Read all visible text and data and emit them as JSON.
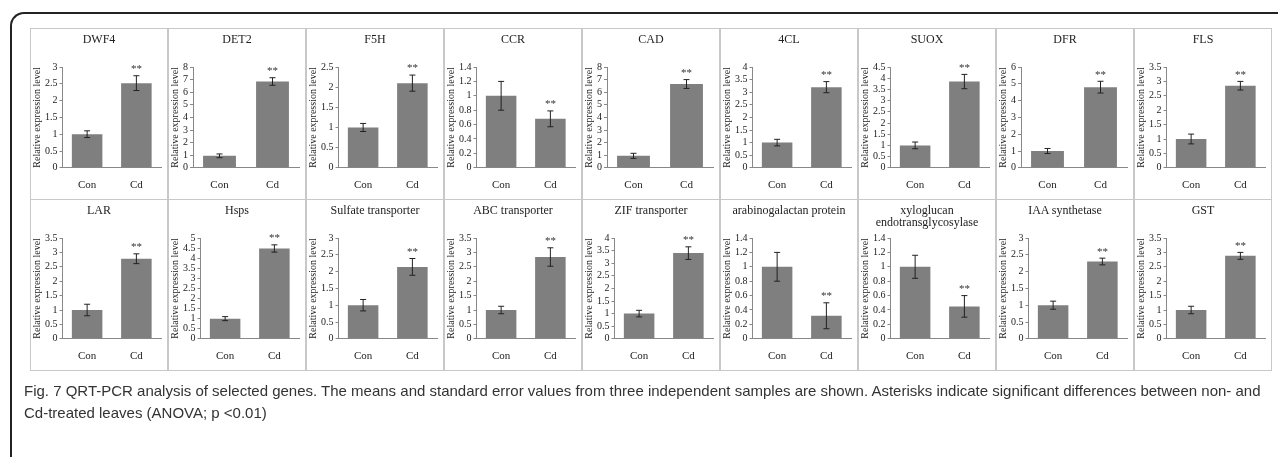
{
  "chart_data": [
    {
      "type": "bar",
      "title": "DWF4",
      "ylabel": "Relative expression level",
      "categories": [
        "Con",
        "Cd"
      ],
      "values": [
        1,
        2.52
      ],
      "errors": [
        0.1,
        0.22
      ],
      "color": "#7f7f7f",
      "ylim": [
        0,
        3
      ],
      "yticks": [
        0,
        0.5,
        1,
        1.5,
        2,
        2.5,
        3
      ],
      "annotations": [
        {
          "text": "**",
          "x": "Cd",
          "y": 2.74
        }
      ]
    },
    {
      "type": "bar",
      "title": "DET2",
      "ylabel": "Relative expression level",
      "categories": [
        "Con",
        "Cd"
      ],
      "values": [
        0.95,
        6.85
      ],
      "errors": [
        0.15,
        0.3
      ],
      "color": "#7f7f7f",
      "ylim": [
        0,
        8
      ],
      "yticks": [
        0,
        1,
        2,
        3,
        4,
        5,
        6,
        7,
        8
      ],
      "annotations": [
        {
          "text": "**",
          "x": "Cd",
          "y": 7.15
        }
      ]
    },
    {
      "type": "bar",
      "title": "F5H",
      "ylabel": "Relative expression level",
      "categories": [
        "Con",
        "Cd"
      ],
      "values": [
        1,
        2.1
      ],
      "errors": [
        0.1,
        0.2
      ],
      "color": "#7f7f7f",
      "ylim": [
        0,
        2.5
      ],
      "yticks": [
        0,
        0.5,
        1,
        1.5,
        2,
        2.5
      ],
      "annotations": [
        {
          "text": "**",
          "x": "Cd",
          "y": 2.3
        }
      ]
    },
    {
      "type": "bar",
      "title": "CCR",
      "ylabel": "Relative expression level",
      "categories": [
        "Con",
        "Cd"
      ],
      "values": [
        1,
        0.68
      ],
      "errors": [
        0.2,
        0.11
      ],
      "color": "#7f7f7f",
      "ylim": [
        0,
        1.4
      ],
      "yticks": [
        0,
        0.2,
        0.4,
        0.6,
        0.8,
        1,
        1.2,
        1.4
      ],
      "annotations": [
        {
          "text": "**",
          "x": "Cd",
          "y": 0.79
        }
      ]
    },
    {
      "type": "bar",
      "title": "CAD",
      "ylabel": "Relative expression level",
      "categories": [
        "Con",
        "Cd"
      ],
      "values": [
        0.95,
        6.65
      ],
      "errors": [
        0.2,
        0.35
      ],
      "color": "#7f7f7f",
      "ylim": [
        0,
        8
      ],
      "yticks": [
        0,
        1,
        2,
        3,
        4,
        5,
        6,
        7,
        8
      ],
      "annotations": [
        {
          "text": "**",
          "x": "Cd",
          "y": 7
        }
      ]
    },
    {
      "type": "bar",
      "title": "4CL",
      "ylabel": "Relative expression level",
      "categories": [
        "Con",
        "Cd"
      ],
      "values": [
        1,
        3.2
      ],
      "errors": [
        0.13,
        0.22
      ],
      "color": "#7f7f7f",
      "ylim": [
        0,
        4
      ],
      "yticks": [
        0,
        0.5,
        1,
        1.5,
        2,
        2.5,
        3,
        3.5,
        4
      ],
      "annotations": [
        {
          "text": "**",
          "x": "Cd",
          "y": 3.42
        }
      ]
    },
    {
      "type": "bar",
      "title": "SUOX",
      "ylabel": "Relative expression level",
      "categories": [
        "Con",
        "Cd"
      ],
      "values": [
        1,
        3.85
      ],
      "errors": [
        0.15,
        0.32
      ],
      "color": "#7f7f7f",
      "ylim": [
        0,
        4.5
      ],
      "yticks": [
        0,
        0.5,
        1,
        1.5,
        2,
        2.5,
        3,
        3.5,
        4,
        4.5
      ],
      "annotations": [
        {
          "text": "**",
          "x": "Cd",
          "y": 4.17
        }
      ]
    },
    {
      "type": "bar",
      "title": "DFR",
      "ylabel": "Relative expression level",
      "categories": [
        "Con",
        "Cd"
      ],
      "values": [
        1,
        4.8
      ],
      "errors": [
        0.15,
        0.35
      ],
      "color": "#7f7f7f",
      "ylim": [
        0,
        6
      ],
      "yticks": [
        0,
        1,
        2,
        3,
        4,
        5,
        6
      ],
      "annotations": [
        {
          "text": "**",
          "x": "Cd",
          "y": 5.15
        }
      ]
    },
    {
      "type": "bar",
      "title": "FLS",
      "ylabel": "Relative expression level",
      "categories": [
        "Con",
        "Cd"
      ],
      "values": [
        1,
        2.85
      ],
      "errors": [
        0.17,
        0.15
      ],
      "color": "#7f7f7f",
      "ylim": [
        0,
        3.5
      ],
      "yticks": [
        0,
        0.5,
        1,
        1.5,
        2,
        2.5,
        3,
        3.5
      ],
      "annotations": [
        {
          "text": "**",
          "x": "Cd",
          "y": 3
        }
      ]
    },
    {
      "type": "bar",
      "title": "LAR",
      "ylabel": "Relative expression level",
      "categories": [
        "Con",
        "Cd"
      ],
      "values": [
        1,
        2.78
      ],
      "errors": [
        0.2,
        0.17
      ],
      "color": "#7f7f7f",
      "ylim": [
        0,
        3.5
      ],
      "yticks": [
        0,
        0.5,
        1,
        1.5,
        2,
        2.5,
        3,
        3.5
      ],
      "annotations": [
        {
          "text": "**",
          "x": "Cd",
          "y": 2.95
        }
      ]
    },
    {
      "type": "bar",
      "title": "Hsps",
      "ylabel": "Relative expression level",
      "categories": [
        "Con",
        "Cd"
      ],
      "values": [
        1,
        4.48
      ],
      "errors": [
        0.1,
        0.18
      ],
      "color": "#7f7f7f",
      "ylim": [
        0,
        5
      ],
      "yticks": [
        0,
        0.5,
        1,
        1.5,
        2,
        2.5,
        3,
        3.5,
        4,
        4.5,
        5
      ],
      "annotations": [
        {
          "text": "**",
          "x": "Cd",
          "y": 4.66
        }
      ]
    },
    {
      "type": "bar",
      "title": "Sulfate transporter",
      "ylabel": "Relative expression level",
      "categories": [
        "Con",
        "Cd"
      ],
      "values": [
        1,
        2.14
      ],
      "errors": [
        0.17,
        0.25
      ],
      "color": "#7f7f7f",
      "ylim": [
        0,
        3
      ],
      "yticks": [
        0,
        0.5,
        1,
        1.5,
        2,
        2.5,
        3
      ],
      "annotations": [
        {
          "text": "**",
          "x": "Cd",
          "y": 2.39
        }
      ]
    },
    {
      "type": "bar",
      "title": "ABC transporter",
      "ylabel": "Relative expression level",
      "categories": [
        "Con",
        "Cd"
      ],
      "values": [
        1,
        2.84
      ],
      "errors": [
        0.13,
        0.32
      ],
      "color": "#7f7f7f",
      "ylim": [
        0,
        3.5
      ],
      "yticks": [
        0,
        0.5,
        1,
        1.5,
        2,
        2.5,
        3,
        3.5
      ],
      "annotations": [
        {
          "text": "**",
          "x": "Cd",
          "y": 3.16
        }
      ]
    },
    {
      "type": "bar",
      "title": "ZIF transporter",
      "ylabel": "Relative expression level",
      "categories": [
        "Con",
        "Cd"
      ],
      "values": [
        1,
        3.4
      ],
      "errors": [
        0.13,
        0.25
      ],
      "color": "#7f7f7f",
      "ylim": [
        0,
        4
      ],
      "yticks": [
        0,
        0.5,
        1,
        1.5,
        2,
        2.5,
        3,
        3.5,
        4
      ],
      "annotations": [
        {
          "text": "**",
          "x": "Cd",
          "y": 3.65
        }
      ]
    },
    {
      "type": "bar",
      "title": "arabinogalactan protein",
      "ylabel": "Relative expression level",
      "categories": [
        "Con",
        "Cd"
      ],
      "values": [
        1,
        0.32
      ],
      "errors": [
        0.2,
        0.18
      ],
      "color": "#7f7f7f",
      "ylim": [
        0,
        1.4
      ],
      "yticks": [
        0,
        0.2,
        0.4,
        0.6,
        0.8,
        1,
        1.2,
        1.4
      ],
      "annotations": [
        {
          "text": "**",
          "x": "Cd",
          "y": 0.5
        }
      ]
    },
    {
      "type": "bar",
      "title": "xyloglucan endotransglycosylase",
      "ylabel": "Relative expression level",
      "categories": [
        "Con",
        "Cd"
      ],
      "values": [
        1,
        0.45
      ],
      "errors": [
        0.16,
        0.15
      ],
      "color": "#7f7f7f",
      "ylim": [
        0,
        1.4
      ],
      "yticks": [
        0,
        0.2,
        0.4,
        0.6,
        0.8,
        1,
        1.2,
        1.4
      ],
      "annotations": [
        {
          "text": "**",
          "x": "Cd",
          "y": 0.6
        }
      ]
    },
    {
      "type": "bar",
      "title": "IAA synthetase",
      "ylabel": "Relative expression level",
      "categories": [
        "Con",
        "Cd"
      ],
      "values": [
        1,
        2.3
      ],
      "errors": [
        0.12,
        0.1
      ],
      "color": "#7f7f7f",
      "ylim": [
        0,
        3
      ],
      "yticks": [
        0,
        0.5,
        1,
        1.5,
        2,
        2.5,
        3
      ],
      "annotations": [
        {
          "text": "**",
          "x": "Cd",
          "y": 2.4
        }
      ]
    },
    {
      "type": "bar",
      "title": "GST",
      "ylabel": "Relative expression level",
      "categories": [
        "Con",
        "Cd"
      ],
      "values": [
        1,
        2.88
      ],
      "errors": [
        0.13,
        0.12
      ],
      "color": "#7f7f7f",
      "ylim": [
        0,
        3.5
      ],
      "yticks": [
        0,
        0.5,
        1,
        1.5,
        2,
        2.5,
        3,
        3.5
      ],
      "annotations": [
        {
          "text": "**",
          "x": "Cd",
          "y": 3
        },
        "Fig. 7 QRT-PCR analysis of selected genes. The means and standard error values from three independent samples are shown. Asterisks indicate significant differences between non- and Cd-treated leaves (ANOVA; p <0.01)"
      ]
    }
  ]
}
